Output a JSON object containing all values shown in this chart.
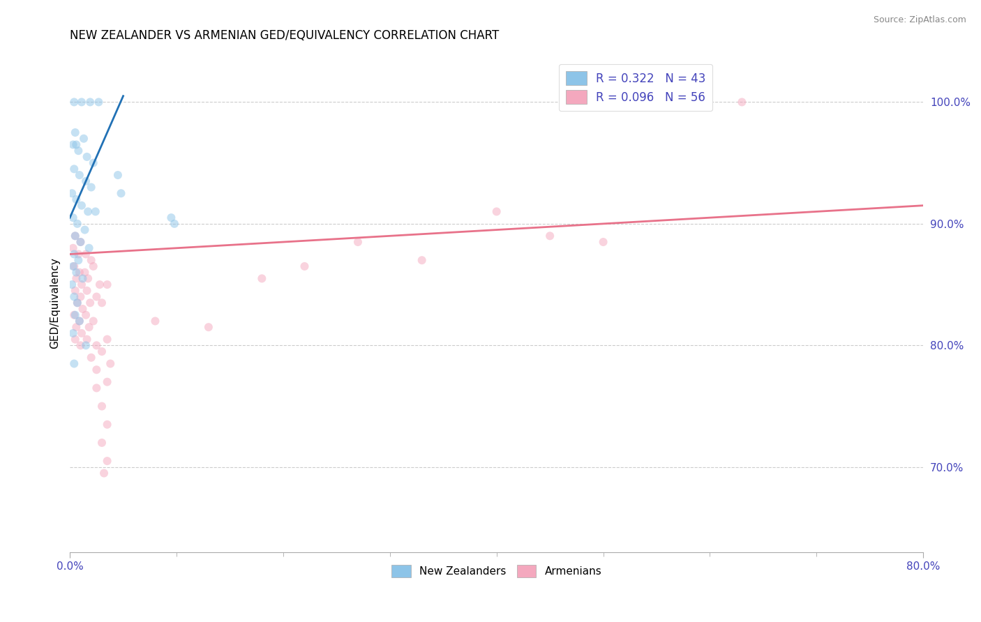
{
  "title": "NEW ZEALANDER VS ARMENIAN GED/EQUIVALENCY CORRELATION CHART",
  "source": "Source: ZipAtlas.com",
  "ylabel": "GED/Equivalency",
  "xlim": [
    0.0,
    80.0
  ],
  "ylim": [
    63.0,
    104.0
  ],
  "legend_labels": [
    "New Zealanders",
    "Armenians"
  ],
  "legend_r_n": [
    {
      "R": "0.322",
      "N": "43",
      "color": "#8dc4e8"
    },
    {
      "R": "0.096",
      "N": "56",
      "color": "#f4a8be"
    }
  ],
  "blue_scatter": [
    [
      0.4,
      100.0
    ],
    [
      1.1,
      100.0
    ],
    [
      1.9,
      100.0
    ],
    [
      2.7,
      100.0
    ],
    [
      0.5,
      97.5
    ],
    [
      1.3,
      97.0
    ],
    [
      0.3,
      96.5
    ],
    [
      0.8,
      96.0
    ],
    [
      1.6,
      95.5
    ],
    [
      2.2,
      95.0
    ],
    [
      0.4,
      94.5
    ],
    [
      0.9,
      94.0
    ],
    [
      1.5,
      93.5
    ],
    [
      2.0,
      93.0
    ],
    [
      0.2,
      92.5
    ],
    [
      0.6,
      92.0
    ],
    [
      1.1,
      91.5
    ],
    [
      1.7,
      91.0
    ],
    [
      2.4,
      91.0
    ],
    [
      0.3,
      90.5
    ],
    [
      0.7,
      90.0
    ],
    [
      1.4,
      89.5
    ],
    [
      0.5,
      89.0
    ],
    [
      1.0,
      88.5
    ],
    [
      1.8,
      88.0
    ],
    [
      0.4,
      87.5
    ],
    [
      0.8,
      87.0
    ],
    [
      0.3,
      86.5
    ],
    [
      0.6,
      86.0
    ],
    [
      1.2,
      85.5
    ],
    [
      0.4,
      84.0
    ],
    [
      0.7,
      83.5
    ],
    [
      0.5,
      82.5
    ],
    [
      0.9,
      82.0
    ],
    [
      0.3,
      81.0
    ],
    [
      1.5,
      80.0
    ],
    [
      0.4,
      78.5
    ],
    [
      4.5,
      94.0
    ],
    [
      4.8,
      92.5
    ],
    [
      9.5,
      90.5
    ],
    [
      9.8,
      90.0
    ],
    [
      0.2,
      85.0
    ],
    [
      0.6,
      96.5
    ]
  ],
  "pink_scatter": [
    [
      0.5,
      89.0
    ],
    [
      1.0,
      88.5
    ],
    [
      0.3,
      88.0
    ],
    [
      0.8,
      87.5
    ],
    [
      1.5,
      87.5
    ],
    [
      2.0,
      87.0
    ],
    [
      0.4,
      86.5
    ],
    [
      0.9,
      86.0
    ],
    [
      1.4,
      86.0
    ],
    [
      2.2,
      86.5
    ],
    [
      0.6,
      85.5
    ],
    [
      1.1,
      85.0
    ],
    [
      1.7,
      85.5
    ],
    [
      2.8,
      85.0
    ],
    [
      0.5,
      84.5
    ],
    [
      1.0,
      84.0
    ],
    [
      1.6,
      84.5
    ],
    [
      2.5,
      84.0
    ],
    [
      3.5,
      85.0
    ],
    [
      0.7,
      83.5
    ],
    [
      1.2,
      83.0
    ],
    [
      1.9,
      83.5
    ],
    [
      3.0,
      83.5
    ],
    [
      0.4,
      82.5
    ],
    [
      0.9,
      82.0
    ],
    [
      1.5,
      82.5
    ],
    [
      2.2,
      82.0
    ],
    [
      0.6,
      81.5
    ],
    [
      1.1,
      81.0
    ],
    [
      1.8,
      81.5
    ],
    [
      0.5,
      80.5
    ],
    [
      1.0,
      80.0
    ],
    [
      1.6,
      80.5
    ],
    [
      2.5,
      80.0
    ],
    [
      3.5,
      80.5
    ],
    [
      2.0,
      79.0
    ],
    [
      3.0,
      79.5
    ],
    [
      2.5,
      78.0
    ],
    [
      3.8,
      78.5
    ],
    [
      2.5,
      76.5
    ],
    [
      3.5,
      77.0
    ],
    [
      3.0,
      75.0
    ],
    [
      3.5,
      73.5
    ],
    [
      3.0,
      72.0
    ],
    [
      3.5,
      70.5
    ],
    [
      3.2,
      69.5
    ],
    [
      8.0,
      82.0
    ],
    [
      13.0,
      81.5
    ],
    [
      18.0,
      85.5
    ],
    [
      22.0,
      86.5
    ],
    [
      27.0,
      88.5
    ],
    [
      33.0,
      87.0
    ],
    [
      40.0,
      91.0
    ],
    [
      45.0,
      89.0
    ],
    [
      50.0,
      88.5
    ],
    [
      63.0,
      100.0
    ]
  ],
  "blue_line_x": [
    0.0,
    5.0
  ],
  "blue_line_y": [
    90.5,
    100.5
  ],
  "pink_line_x": [
    0.0,
    80.0
  ],
  "pink_line_y": [
    87.5,
    91.5
  ],
  "background_color": "#ffffff",
  "scatter_alpha": 0.5,
  "scatter_size": 75,
  "grid_color": "#cccccc",
  "blue_color": "#8dc4e8",
  "pink_color": "#f4a8be",
  "blue_line_color": "#2171b5",
  "pink_line_color": "#e8728a",
  "title_fontsize": 12,
  "tick_label_color": "#4444bb",
  "yticks": [
    70,
    80,
    90,
    100
  ],
  "ytick_labels": [
    "70.0%",
    "80.0%",
    "90.0%",
    "100.0%"
  ]
}
